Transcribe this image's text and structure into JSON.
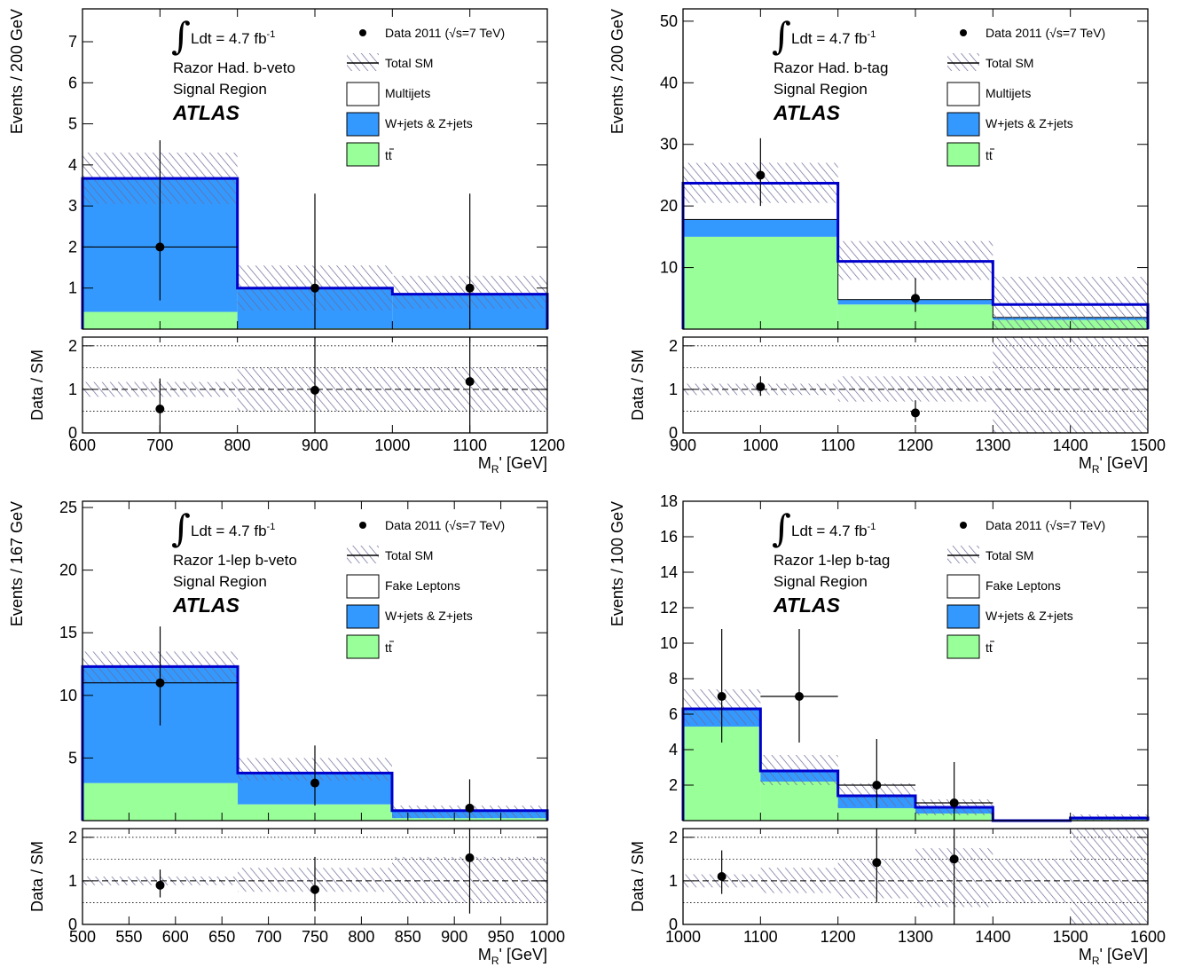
{
  "colors": {
    "ttbar": "#99ff99",
    "wz": "#3399ff",
    "total_line": "#0000cc",
    "band": "#6a6a98",
    "data": "#000000"
  },
  "icons": [
    "integral-symbol-icon",
    "sqrt-symbol-icon"
  ],
  "chart_data": [
    {
      "type": "bar",
      "stacked": true,
      "channel": "Razor Had. b-veto",
      "region": "Signal Region",
      "label": "ATLAS",
      "luminosity": "Ldt = 4.7 fb",
      "lumi_exponent": "-1",
      "legend": {
        "data_pre": "Data 2011 (",
        "data_s": "s",
        "data_post": "=7 TeV)",
        "total": "Total SM",
        "fake": "Multijets",
        "wz": "W+jets & Z+jets",
        "tt_t": "t",
        "tt_tbar": "t"
      },
      "xlabel": "M",
      "xlabel_sub": "R",
      "xlabel_suffix": "' [GeV]",
      "ylabel": "Events / 200 GeV",
      "ratio_ylabel": "Data / SM",
      "xlim": [
        600,
        1200
      ],
      "ylim": [
        0,
        7.8
      ],
      "ratio_ylim": [
        0,
        2.2
      ],
      "xticks": [
        600,
        700,
        800,
        900,
        1000,
        1100,
        1200
      ],
      "xtick_labels": [
        "600",
        "700",
        "800",
        "900",
        "1000",
        "1100",
        "1200"
      ],
      "yticks": [
        1,
        2,
        3,
        4,
        5,
        6,
        7
      ],
      "ytick_labels": [
        "1",
        "2",
        "3",
        "4",
        "5",
        "6",
        "7"
      ],
      "ratio_yticks": [
        0,
        1,
        2
      ],
      "ratio_ytick_labels": [
        "0",
        "1",
        "2"
      ],
      "bins": [
        {
          "lo": 600,
          "hi": 800,
          "ttbar": 0.42,
          "wz": 3.25,
          "total": 3.67,
          "band_lo": 3.05,
          "band_hi": 4.3,
          "ratio_band": [
            0.83,
            1.17
          ]
        },
        {
          "lo": 800,
          "hi": 1000,
          "ttbar": 0.02,
          "wz": 0.98,
          "total": 1.0,
          "band_lo": 0.45,
          "band_hi": 1.55,
          "ratio_band": [
            0.5,
            1.5
          ]
        },
        {
          "lo": 1000,
          "hi": 1200,
          "ttbar": 0.02,
          "wz": 0.83,
          "total": 0.85,
          "band_lo": 0.5,
          "band_hi": 1.3,
          "ratio_band": [
            0.5,
            1.5
          ]
        }
      ],
      "data": [
        {
          "x": 700,
          "y": 2,
          "ylo": 0.7,
          "yhi": 4.6,
          "xerr": 100
        },
        {
          "x": 900,
          "y": 1,
          "ylo": 0.0,
          "yhi": 3.3,
          "xerr": 0
        },
        {
          "x": 1100,
          "y": 1,
          "ylo": 0.0,
          "yhi": 3.3,
          "xerr": 0
        }
      ],
      "ratio": [
        {
          "x": 700,
          "y": 0.55,
          "ylo": 0.0,
          "yhi": 1.25
        },
        {
          "x": 900,
          "y": 0.98,
          "ylo": 0.0,
          "yhi": 2.2
        },
        {
          "x": 1100,
          "y": 1.18,
          "ylo": 0.0,
          "yhi": 2.2
        }
      ]
    },
    {
      "type": "bar",
      "stacked": true,
      "channel": "Razor Had. b-tag",
      "region": "Signal Region",
      "label": "ATLAS",
      "luminosity": "Ldt = 4.7 fb",
      "lumi_exponent": "-1",
      "legend": {
        "data_pre": "Data 2011 (",
        "data_s": "s",
        "data_post": "=7 TeV)",
        "total": "Total SM",
        "fake": "Multijets",
        "wz": "W+jets & Z+jets",
        "tt_t": "t",
        "tt_tbar": "t"
      },
      "xlabel": "M",
      "xlabel_sub": "R",
      "xlabel_suffix": "' [GeV]",
      "ylabel": "Events / 200 GeV",
      "ratio_ylabel": "Data / SM",
      "xlim": [
        900,
        1500
      ],
      "ylim": [
        0,
        52
      ],
      "ratio_ylim": [
        0,
        2.2
      ],
      "xticks": [
        900,
        1000,
        1100,
        1200,
        1300,
        1400,
        1500
      ],
      "xtick_labels": [
        "900",
        "1000",
        "1100",
        "1200",
        "1300",
        "1400",
        "1500"
      ],
      "yticks": [
        10,
        20,
        30,
        40,
        50
      ],
      "ytick_labels": [
        "10",
        "20",
        "30",
        "40",
        "50"
      ],
      "ratio_yticks": [
        0,
        1,
        2
      ],
      "ratio_ytick_labels": [
        "0",
        "1",
        "2"
      ],
      "bins": [
        {
          "lo": 900,
          "hi": 1100,
          "ttbar": 15,
          "wz": 2.8,
          "fake": 5.9,
          "total": 23.7,
          "band_lo": 20.5,
          "band_hi": 27,
          "ratio_band": [
            0.87,
            1.13
          ]
        },
        {
          "lo": 1100,
          "hi": 1300,
          "ttbar": 4.0,
          "wz": 0.8,
          "fake": 6.2,
          "total": 11.0,
          "band_lo": 8.0,
          "band_hi": 14.3,
          "ratio_band": [
            0.72,
            1.3
          ]
        },
        {
          "lo": 1300,
          "hi": 1500,
          "ttbar": 1.5,
          "wz": 0.4,
          "fake": 2.1,
          "total": 4.0,
          "band_lo": 0,
          "band_hi": 8.5,
          "ratio_band": [
            0,
            2.2
          ]
        }
      ],
      "data": [
        {
          "x": 1000,
          "y": 25,
          "ylo": 20,
          "yhi": 31,
          "xerr": 0
        },
        {
          "x": 1200,
          "y": 5,
          "ylo": 2.8,
          "yhi": 8.3,
          "xerr": 0
        }
      ],
      "ratio": [
        {
          "x": 1000,
          "y": 1.06,
          "ylo": 0.85,
          "yhi": 1.3
        },
        {
          "x": 1200,
          "y": 0.46,
          "ylo": 0.25,
          "yhi": 0.75
        }
      ]
    },
    {
      "type": "bar",
      "stacked": true,
      "channel": "Razor 1-lep b-veto",
      "region": "Signal Region",
      "label": "ATLAS",
      "luminosity": "Ldt = 4.7 fb",
      "lumi_exponent": "-1",
      "legend": {
        "data_pre": "Data 2011 (",
        "data_s": "s",
        "data_post": "=7 TeV)",
        "total": "Total SM",
        "fake": "Fake Leptons",
        "wz": "W+jets & Z+jets",
        "tt_t": "t",
        "tt_tbar": "t"
      },
      "xlabel": "M",
      "xlabel_sub": "R",
      "xlabel_suffix": "' [GeV]",
      "ylabel": "Events / 167 GeV",
      "ratio_ylabel": "Data / SM",
      "xlim": [
        500,
        1000
      ],
      "ylim": [
        0,
        25.5
      ],
      "ratio_ylim": [
        0,
        2.2
      ],
      "xticks": [
        500,
        550,
        600,
        650,
        700,
        750,
        800,
        850,
        900,
        950,
        1000
      ],
      "xtick_labels": [
        "500",
        "550",
        "600",
        "650",
        "700",
        "750",
        "800",
        "850",
        "900",
        "950",
        "1000"
      ],
      "yticks": [
        5,
        10,
        15,
        20,
        25
      ],
      "ytick_labels": [
        "5",
        "10",
        "15",
        "20",
        "25"
      ],
      "ratio_yticks": [
        0,
        1,
        2
      ],
      "ratio_ytick_labels": [
        "0",
        "1",
        "2"
      ],
      "bins": [
        {
          "lo": 500,
          "hi": 667,
          "ttbar": 3.0,
          "wz": 9.3,
          "total": 12.3,
          "band_lo": 11.0,
          "band_hi": 13.5,
          "ratio_band": [
            0.9,
            1.1
          ]
        },
        {
          "lo": 667,
          "hi": 833,
          "ttbar": 1.3,
          "wz": 2.5,
          "total": 3.8,
          "band_lo": 3.2,
          "band_hi": 5.0,
          "ratio_band": [
            0.75,
            1.3
          ]
        },
        {
          "lo": 833,
          "hi": 1000,
          "ttbar": 0.2,
          "wz": 0.6,
          "total": 0.8,
          "band_lo": 0.2,
          "band_hi": 1.2,
          "ratio_band": [
            0.5,
            1.55
          ]
        }
      ],
      "data": [
        {
          "x": 583.5,
          "y": 11,
          "ylo": 7.6,
          "yhi": 15.5,
          "xerr": 83.5
        },
        {
          "x": 750,
          "y": 3,
          "ylo": 1.2,
          "yhi": 6.0,
          "xerr": 0
        },
        {
          "x": 916.5,
          "y": 1,
          "ylo": 0.0,
          "yhi": 3.3,
          "xerr": 0
        }
      ],
      "ratio": [
        {
          "x": 583.5,
          "y": 0.9,
          "ylo": 0.62,
          "yhi": 1.26
        },
        {
          "x": 750,
          "y": 0.8,
          "ylo": 0.3,
          "yhi": 1.55
        },
        {
          "x": 916.5,
          "y": 1.53,
          "ylo": 0.25,
          "yhi": 2.2
        }
      ]
    },
    {
      "type": "bar",
      "stacked": true,
      "channel": "Razor 1-lep b-tag",
      "region": "Signal Region",
      "label": "ATLAS",
      "luminosity": "Ldt = 4.7 fb",
      "lumi_exponent": "-1",
      "legend": {
        "data_pre": "Data 2011 (",
        "data_s": "s",
        "data_post": "=7 TeV)",
        "total": "Total SM",
        "fake": "Fake Leptons",
        "wz": "W+jets & Z+jets",
        "tt_t": "t",
        "tt_tbar": "t"
      },
      "xlabel": "M",
      "xlabel_sub": "R",
      "xlabel_suffix": "' [GeV]",
      "ylabel": "Events / 100 GeV",
      "ratio_ylabel": "Data / SM",
      "xlim": [
        1000,
        1600
      ],
      "ylim": [
        0,
        18
      ],
      "ratio_ylim": [
        0,
        2.2
      ],
      "xticks": [
        1000,
        1100,
        1200,
        1300,
        1400,
        1500,
        1600
      ],
      "xtick_labels": [
        "1000",
        "1100",
        "1200",
        "1300",
        "1400",
        "1500",
        "1600"
      ],
      "yticks": [
        2,
        4,
        6,
        8,
        10,
        12,
        14,
        16,
        18
      ],
      "ytick_labels": [
        "2",
        "4",
        "6",
        "8",
        "10",
        "12",
        "14",
        "16",
        "18"
      ],
      "ratio_yticks": [
        0,
        1,
        2
      ],
      "ratio_ytick_labels": [
        "0",
        "1",
        "2"
      ],
      "bins": [
        {
          "lo": 1000,
          "hi": 1100,
          "ttbar": 5.3,
          "wz": 1.0,
          "total": 6.3,
          "band_lo": 5.4,
          "band_hi": 7.4,
          "ratio_band": [
            0.85,
            1.15
          ]
        },
        {
          "lo": 1100,
          "hi": 1200,
          "ttbar": 2.2,
          "wz": 0.6,
          "total": 2.8,
          "band_lo": 2.0,
          "band_hi": 3.7,
          "ratio_band": [
            0.72,
            1.3
          ]
        },
        {
          "lo": 1200,
          "hi": 1300,
          "ttbar": 0.7,
          "wz": 0.7,
          "total": 1.4,
          "band_lo": 0.8,
          "band_hi": 2.1,
          "ratio_band": [
            0.6,
            1.5
          ]
        },
        {
          "lo": 1300,
          "hi": 1400,
          "ttbar": 0.4,
          "wz": 0.35,
          "total": 0.75,
          "band_lo": 0.3,
          "band_hi": 1.2,
          "ratio_band": [
            0.4,
            1.75
          ]
        },
        {
          "lo": 1400,
          "hi": 1500,
          "ttbar": 0.0,
          "wz": 0.0,
          "total": 0.0,
          "band_lo": 0.0,
          "band_hi": 0.0,
          "ratio_band": [
            0.5,
            1.5
          ]
        },
        {
          "lo": 1500,
          "hi": 1600,
          "ttbar": 0.05,
          "wz": 0.1,
          "total": 0.15,
          "band_lo": 0.0,
          "band_hi": 0.35,
          "ratio_band": [
            0.0,
            2.2
          ]
        }
      ],
      "data": [
        {
          "x": 1050,
          "y": 7,
          "ylo": 4.4,
          "yhi": 10.8,
          "xerr": 0
        },
        {
          "x": 1150,
          "y": 7,
          "ylo": 4.4,
          "yhi": 10.8,
          "xerr": 50
        },
        {
          "x": 1250,
          "y": 2,
          "ylo": 0.7,
          "yhi": 4.6,
          "xerr": 50
        },
        {
          "x": 1350,
          "y": 1,
          "ylo": 0.0,
          "yhi": 3.3,
          "xerr": 50
        }
      ],
      "ratio": [
        {
          "x": 1050,
          "y": 1.1,
          "ylo": 0.7,
          "yhi": 1.7
        },
        {
          "x": 1250,
          "y": 1.42,
          "ylo": 0.5,
          "yhi": 2.2
        },
        {
          "x": 1350,
          "y": 1.5,
          "ylo": 0.0,
          "yhi": 2.2
        }
      ]
    }
  ]
}
